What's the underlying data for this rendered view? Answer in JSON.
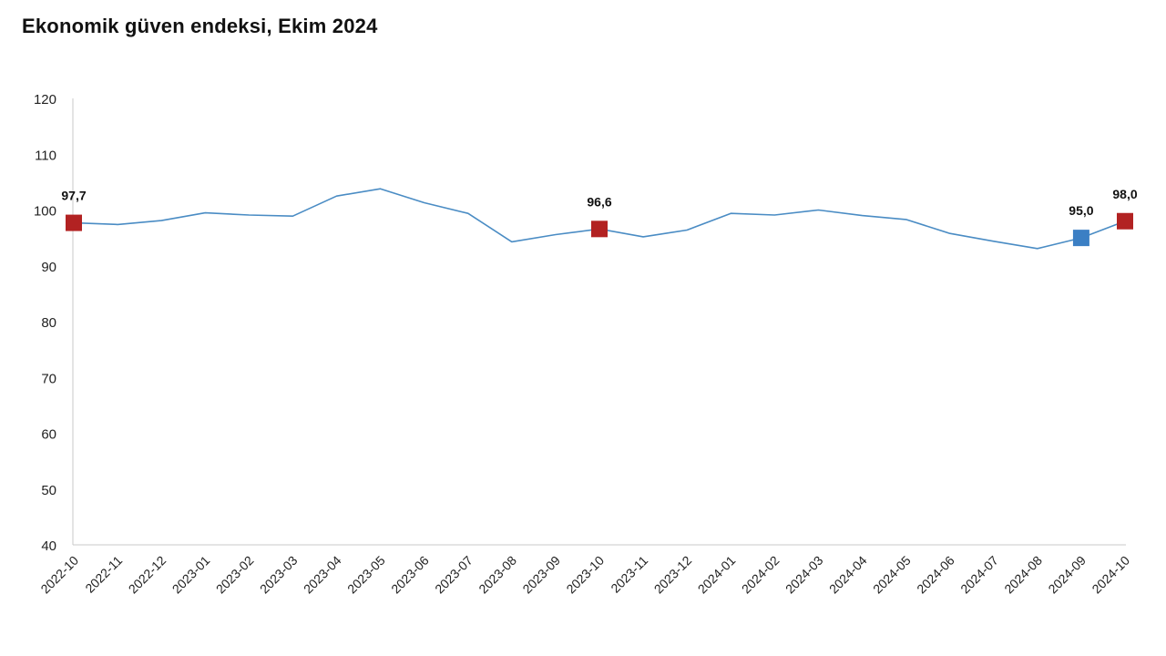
{
  "title": "Ekonomik güven endeksi, Ekim 2024",
  "colors": {
    "line": "#4a8cc4",
    "highlight_red": "#b22222",
    "highlight_blue": "#3b7fc4",
    "axis": "#c8c8c8"
  },
  "chart_data": {
    "type": "line",
    "title": "Ekonomik güven endeksi, Ekim 2024",
    "xlabel": "",
    "ylabel": "",
    "ylim": [
      40,
      120
    ],
    "yticks": [
      40,
      50,
      60,
      70,
      80,
      90,
      100,
      110,
      120
    ],
    "grid": false,
    "categories": [
      "2022-10",
      "2022-11",
      "2022-12",
      "2023-01",
      "2023-02",
      "2023-03",
      "2023-04",
      "2023-05",
      "2023-06",
      "2023-07",
      "2023-08",
      "2023-09",
      "2023-10",
      "2023-11",
      "2023-12",
      "2024-01",
      "2024-02",
      "2024-03",
      "2024-04",
      "2024-05",
      "2024-06",
      "2024-07",
      "2024-08",
      "2024-09",
      "2024-10"
    ],
    "series": [
      {
        "values": [
          97.7,
          97.4,
          98.1,
          99.5,
          99.1,
          98.9,
          102.5,
          103.8,
          101.3,
          99.4,
          94.3,
          95.6,
          96.6,
          95.2,
          96.4,
          99.4,
          99.1,
          100.0,
          99.0,
          98.3,
          95.8,
          94.4,
          93.1,
          95.0,
          98.0
        ]
      }
    ],
    "highlights": [
      {
        "category": "2022-10",
        "value": 97.7,
        "label": "97,7",
        "color": "#b22222"
      },
      {
        "category": "2023-10",
        "value": 96.6,
        "label": "96,6",
        "color": "#b22222"
      },
      {
        "category": "2024-09",
        "value": 95.0,
        "label": "95,0",
        "color": "#3b7fc4"
      },
      {
        "category": "2024-10",
        "value": 98.0,
        "label": "98,0",
        "color": "#b22222"
      }
    ]
  }
}
